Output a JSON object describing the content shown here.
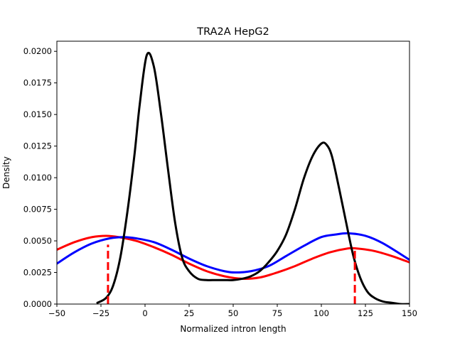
{
  "chart_data": {
    "type": "line",
    "title": "TRA2A HepG2",
    "xlabel": "Normalized intron length",
    "ylabel": "Density",
    "xlim": [
      -50,
      150
    ],
    "ylim": [
      0,
      0.0208
    ],
    "x_ticks": [
      -50,
      -25,
      0,
      25,
      50,
      75,
      100,
      125,
      150
    ],
    "x_tick_labels": [
      "−50",
      "−25",
      "0",
      "25",
      "50",
      "75",
      "100",
      "125",
      "150"
    ],
    "y_ticks": [
      0,
      0.0025,
      0.005,
      0.0075,
      0.01,
      0.0125,
      0.015,
      0.0175,
      0.02
    ],
    "y_tick_labels": [
      "0.0000",
      "0.0025",
      "0.0050",
      "0.0075",
      "0.0100",
      "0.0125",
      "0.0150",
      "0.0175",
      "0.0200"
    ],
    "grid": false,
    "series": [
      {
        "color": "#ff0000",
        "x": [
          -50,
          -40,
          -30,
          -22,
          -15,
          -5,
          5,
          15,
          25,
          35,
          45,
          55,
          65,
          75,
          85,
          95,
          105,
          115,
          120,
          130,
          140,
          150
        ],
        "values": [
          0.0043,
          0.0049,
          0.0053,
          0.0054,
          0.0053,
          0.005,
          0.0045,
          0.0039,
          0.0032,
          0.0026,
          0.0022,
          0.002,
          0.0021,
          0.0025,
          0.003,
          0.0036,
          0.0041,
          0.0044,
          0.0044,
          0.0042,
          0.0038,
          0.0033
        ]
      },
      {
        "color": "#0000ff",
        "x": [
          -50,
          -40,
          -30,
          -20,
          -12,
          -5,
          5,
          15,
          25,
          35,
          45,
          51,
          60,
          70,
          80,
          90,
          100,
          108,
          115,
          125,
          135,
          150
        ],
        "values": [
          0.0032,
          0.0041,
          0.0048,
          0.0052,
          0.0053,
          0.0052,
          0.0049,
          0.0043,
          0.0036,
          0.003,
          0.0026,
          0.0025,
          0.0026,
          0.003,
          0.0038,
          0.0046,
          0.0053,
          0.0055,
          0.0056,
          0.0054,
          0.0048,
          0.0035
        ]
      },
      {
        "color": "#000000",
        "x": [
          -27,
          -22,
          -18,
          -14,
          -10,
          -6,
          -3,
          1,
          5,
          9,
          13,
          17,
          21,
          25,
          30,
          35,
          40,
          45,
          50,
          55,
          60,
          65,
          70,
          75,
          80,
          85,
          90,
          95,
          100,
          103,
          106,
          110,
          114,
          118,
          122,
          126,
          130,
          135,
          140,
          145,
          150
        ],
        "values": [
          0.0001,
          0.0005,
          0.0015,
          0.0037,
          0.0073,
          0.0118,
          0.0158,
          0.0197,
          0.0188,
          0.0151,
          0.0107,
          0.0065,
          0.0037,
          0.0026,
          0.002,
          0.0019,
          0.0019,
          0.0019,
          0.0019,
          0.002,
          0.0022,
          0.0026,
          0.0033,
          0.0042,
          0.0055,
          0.0075,
          0.0099,
          0.0117,
          0.0127,
          0.0126,
          0.0117,
          0.0092,
          0.0065,
          0.0039,
          0.0021,
          0.001,
          0.0005,
          0.0002,
          0.0001,
          0,
          0
        ]
      }
    ],
    "annotations": [
      {
        "type": "vline",
        "x": -21,
        "y_top": 0.0047,
        "color": "#ff0000",
        "style": "dashed"
      },
      {
        "type": "vline",
        "x": 119,
        "y_top": 0.0044,
        "color": "#ff0000",
        "style": "dashed"
      }
    ]
  }
}
